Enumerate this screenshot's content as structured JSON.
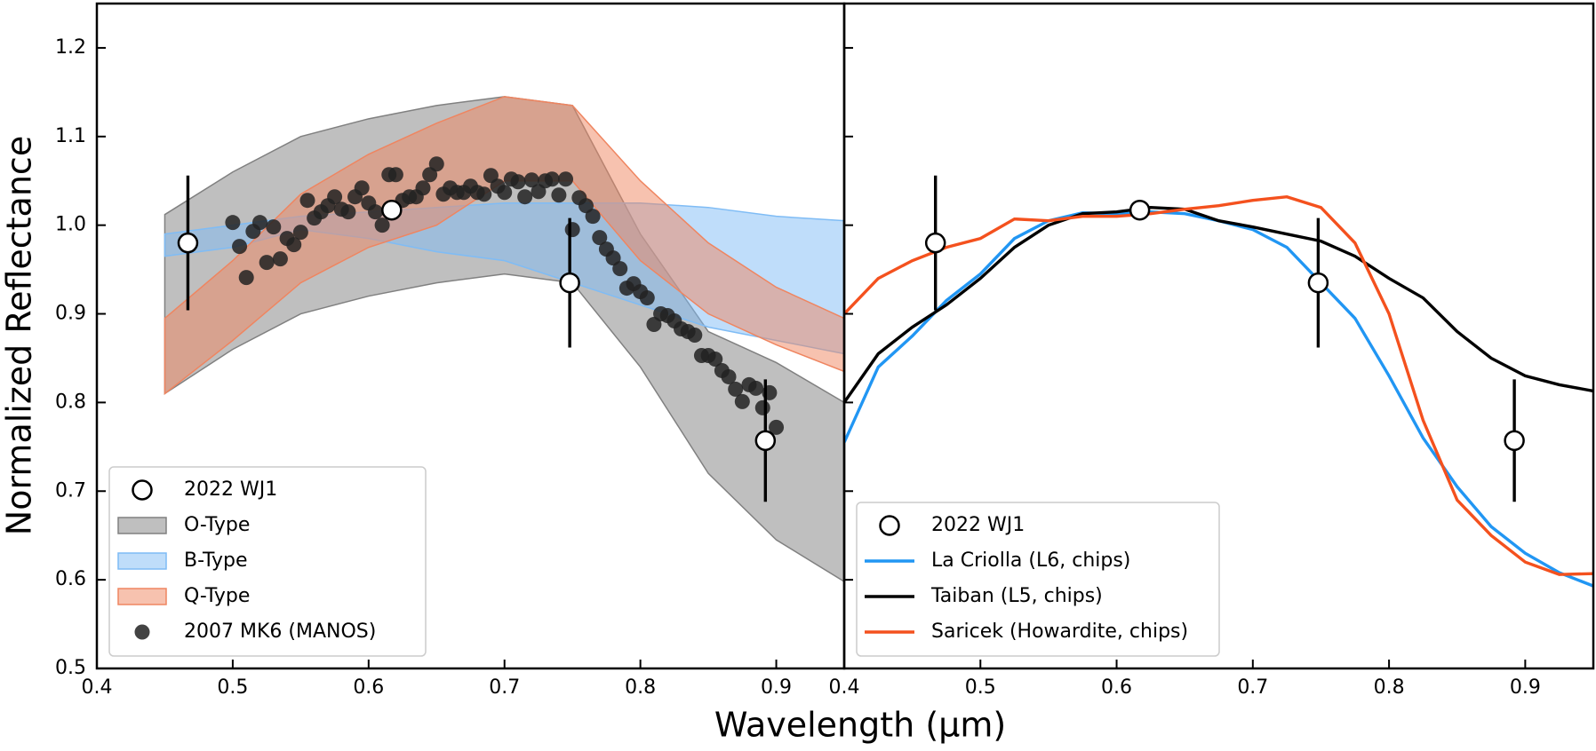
{
  "chart_data": [
    {
      "type": "scatter",
      "xlabel": "Wavelength (μm)",
      "ylabel": "Normalized Reflectance",
      "xlim": [
        0.4,
        0.95
      ],
      "ylim": [
        0.5,
        1.25
      ],
      "xticks": [
        0.4,
        0.5,
        0.6,
        0.7,
        0.8,
        0.9
      ],
      "yticks": [
        0.5,
        0.6,
        0.7,
        0.8,
        0.9,
        {
          "value": 1.0,
          "label": "1.0"
        },
        1.1,
        1.2
      ],
      "legend": "lower left",
      "series": [
        {
          "name": "2022 WJ1",
          "color": "#ffffff",
          "x": [
            0.467,
            0.617,
            0.748,
            0.892
          ],
          "values": [
            0.98,
            1.017,
            0.935,
            0.757
          ],
          "errors": [
            0.076,
            0,
            0.073,
            0.069
          ]
        },
        {
          "name": "O-Type",
          "color": "#808080",
          "x": [
            0.45,
            0.5,
            0.55,
            0.6,
            0.65,
            0.7,
            0.75,
            0.8,
            0.85,
            0.9,
            0.95
          ],
          "upper": [
            1.012,
            1.06,
            1.1,
            1.12,
            1.135,
            1.145,
            1.135,
            0.99,
            0.88,
            0.845,
            0.8
          ],
          "lower": [
            0.81,
            0.86,
            0.9,
            0.92,
            0.935,
            0.945,
            0.935,
            0.84,
            0.72,
            0.645,
            0.598
          ]
        },
        {
          "name": "B-Type",
          "color": "#7fbcf5",
          "x": [
            0.45,
            0.5,
            0.55,
            0.6,
            0.65,
            0.7,
            0.75,
            0.8,
            0.85,
            0.9,
            0.95
          ],
          "upper": [
            0.99,
            1.0,
            1.01,
            1.015,
            1.02,
            1.025,
            1.025,
            1.025,
            1.02,
            1.01,
            1.005
          ],
          "lower": [
            0.965,
            0.975,
            0.995,
            0.985,
            0.97,
            0.96,
            0.935,
            0.91,
            0.885,
            0.87,
            0.855
          ]
        },
        {
          "name": "Q-Type",
          "color": "#ef8560",
          "x": [
            0.45,
            0.5,
            0.55,
            0.6,
            0.65,
            0.7,
            0.75,
            0.8,
            0.85,
            0.9,
            0.95
          ],
          "upper": [
            0.895,
            0.96,
            1.035,
            1.08,
            1.115,
            1.145,
            1.135,
            1.05,
            0.98,
            0.93,
            0.895
          ],
          "lower": [
            0.81,
            0.87,
            0.935,
            0.975,
            1.0,
            1.05,
            1.05,
            0.96,
            0.9,
            0.865,
            0.835
          ]
        },
        {
          "name": "2007 MK6 (MANOS)",
          "color": "#222222",
          "x": [
            0.5,
            0.505,
            0.51,
            0.515,
            0.52,
            0.525,
            0.53,
            0.535,
            0.54,
            0.545,
            0.55,
            0.555,
            0.56,
            0.565,
            0.57,
            0.575,
            0.58,
            0.585,
            0.59,
            0.595,
            0.6,
            0.605,
            0.61,
            0.615,
            0.62,
            0.625,
            0.63,
            0.635,
            0.64,
            0.645,
            0.65,
            0.655,
            0.66,
            0.665,
            0.67,
            0.675,
            0.68,
            0.685,
            0.69,
            0.695,
            0.7,
            0.705,
            0.71,
            0.715,
            0.72,
            0.725,
            0.73,
            0.735,
            0.74,
            0.745,
            0.75,
            0.755,
            0.76,
            0.765,
            0.77,
            0.775,
            0.78,
            0.785,
            0.79,
            0.795,
            0.8,
            0.805,
            0.81,
            0.815,
            0.82,
            0.825,
            0.83,
            0.835,
            0.84,
            0.845,
            0.85,
            0.855,
            0.86,
            0.865,
            0.87,
            0.875,
            0.88,
            0.885,
            0.89,
            0.895,
            0.9
          ],
          "values": [
            1.003,
            0.976,
            0.941,
            0.993,
            1.003,
            0.958,
            0.998,
            0.962,
            0.985,
            0.978,
            0.992,
            1.028,
            1.008,
            1.015,
            1.022,
            1.032,
            1.018,
            1.015,
            1.032,
            1.042,
            1.025,
            1.015,
            1.0,
            1.057,
            1.057,
            1.028,
            1.032,
            1.032,
            1.042,
            1.057,
            1.069,
            1.035,
            1.042,
            1.037,
            1.037,
            1.044,
            1.037,
            1.035,
            1.056,
            1.044,
            1.037,
            1.052,
            1.049,
            1.032,
            1.051,
            1.038,
            1.05,
            1.052,
            1.034,
            1.052,
            0.995,
            1.031,
            1.022,
            1.01,
            0.986,
            0.973,
            0.963,
            0.951,
            0.929,
            0.934,
            0.925,
            0.918,
            0.888,
            0.9,
            0.898,
            0.892,
            0.883,
            0.88,
            0.876,
            0.853,
            0.853,
            0.849,
            0.836,
            0.829,
            0.815,
            0.801,
            0.82,
            0.816,
            0.794,
            0.811,
            0.772
          ]
        }
      ]
    },
    {
      "type": "line",
      "xlim": [
        0.4,
        0.95
      ],
      "ylim": [
        0.5,
        1.25
      ],
      "xticks": [
        0.4,
        0.5,
        0.6,
        0.7,
        0.8,
        0.9
      ],
      "legend": "lower left",
      "series": [
        {
          "name": "2022 WJ1",
          "color": "#ffffff",
          "x": [
            0.467,
            0.617,
            0.748,
            0.892
          ],
          "values": [
            0.98,
            1.017,
            0.935,
            0.757
          ],
          "errors": [
            0.076,
            0,
            0.073,
            0.069
          ]
        },
        {
          "name": "La Criolla (L6, chips)",
          "color": "#2196f3",
          "x": [
            0.4,
            0.425,
            0.45,
            0.475,
            0.5,
            0.525,
            0.55,
            0.575,
            0.6,
            0.625,
            0.65,
            0.675,
            0.7,
            0.725,
            0.75,
            0.775,
            0.8,
            0.825,
            0.85,
            0.875,
            0.9,
            0.925,
            0.95
          ],
          "values": [
            0.755,
            0.84,
            0.875,
            0.915,
            0.945,
            0.985,
            1.005,
            1.014,
            1.013,
            1.015,
            1.013,
            1.005,
            0.995,
            0.975,
            0.935,
            0.895,
            0.83,
            0.76,
            0.705,
            0.66,
            0.63,
            0.608,
            0.593
          ]
        },
        {
          "name": "Taiban (L5, chips)",
          "color": "#000000",
          "x": [
            0.4,
            0.425,
            0.45,
            0.475,
            0.5,
            0.525,
            0.55,
            0.575,
            0.6,
            0.625,
            0.65,
            0.675,
            0.7,
            0.725,
            0.75,
            0.775,
            0.8,
            0.825,
            0.85,
            0.875,
            0.9,
            0.925,
            0.95
          ],
          "values": [
            0.8,
            0.855,
            0.885,
            0.91,
            0.94,
            0.975,
            1.0,
            1.013,
            1.015,
            1.02,
            1.018,
            1.005,
            0.998,
            0.99,
            0.982,
            0.965,
            0.94,
            0.918,
            0.88,
            0.85,
            0.83,
            0.82,
            0.813
          ]
        },
        {
          "name": "Saricek (Howardite, chips)",
          "color": "#f4511e",
          "x": [
            0.4,
            0.425,
            0.45,
            0.475,
            0.5,
            0.525,
            0.55,
            0.575,
            0.6,
            0.625,
            0.65,
            0.675,
            0.7,
            0.725,
            0.75,
            0.775,
            0.8,
            0.825,
            0.85,
            0.875,
            0.9,
            0.925,
            0.95
          ],
          "values": [
            0.9,
            0.94,
            0.96,
            0.975,
            0.985,
            1.007,
            1.005,
            1.01,
            1.01,
            1.013,
            1.018,
            1.022,
            1.028,
            1.032,
            1.02,
            0.98,
            0.9,
            0.78,
            0.69,
            0.65,
            0.62,
            0.606,
            0.607
          ]
        }
      ]
    }
  ]
}
